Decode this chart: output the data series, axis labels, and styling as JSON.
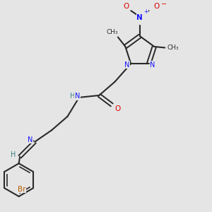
{
  "bg_color": "#e5e5e5",
  "bond_color": "#2a2a2a",
  "N_color": "#1414ff",
  "O_color": "#dd0000",
  "Br_color": "#b85800",
  "H_color": "#3a8080",
  "font_size": 7.0,
  "figsize": [
    3.0,
    3.0
  ],
  "dpi": 100,
  "xlim": [
    0,
    10
  ],
  "ylim": [
    0,
    10
  ]
}
